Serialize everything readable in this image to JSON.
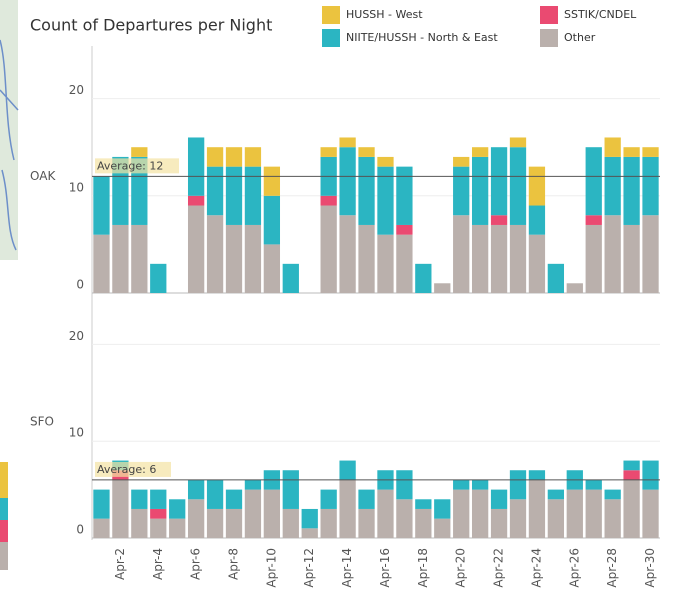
{
  "chart_data": {
    "type": "stacked_bar",
    "title": "Count of Departures per Night",
    "categories": [
      null,
      "Apr-2",
      null,
      "Apr-4",
      null,
      "Apr-6",
      null,
      "Apr-8",
      null,
      "Apr-10",
      null,
      "Apr-12",
      null,
      "Apr-14",
      null,
      "Apr-16",
      null,
      "Apr-18",
      null,
      "Apr-20",
      null,
      "Apr-22",
      null,
      "Apr-24",
      null,
      "Apr-26",
      null,
      "Apr-28",
      null,
      "Apr-30"
    ],
    "series": [
      {
        "name": "HUSSH - West",
        "color": "#ebc33f"
      },
      {
        "name": "NIITE/HUSSH - North & East",
        "color": "#2bb5c2"
      },
      {
        "name": "SSTIK/CNDEL",
        "color": "#ea4a71"
      },
      {
        "name": "Other",
        "color": "#bab0ac"
      }
    ],
    "grid": true,
    "panels": [
      {
        "label": "OAK",
        "ylim": [
          0,
          25
        ],
        "yticks": [
          0,
          10,
          20
        ],
        "average": 12,
        "average_label": "Average: 12",
        "values": [
          [
            0,
            0,
            1,
            0,
            0,
            0,
            2,
            2,
            2,
            3,
            0,
            0,
            1,
            1,
            1,
            1,
            0,
            0,
            0,
            1,
            1,
            0,
            1,
            4,
            0,
            0,
            0,
            2,
            1,
            1
          ],
          [
            6,
            7,
            7,
            3,
            0,
            6,
            5,
            6,
            6,
            5,
            3,
            0,
            4,
            7,
            7,
            7,
            6,
            3,
            0,
            5,
            7,
            7,
            8,
            3,
            3,
            0,
            7,
            6,
            7,
            6
          ],
          [
            0,
            0,
            0,
            0,
            0,
            1,
            0,
            0,
            0,
            0,
            0,
            0,
            1,
            0,
            0,
            0,
            1,
            0,
            0,
            0,
            0,
            1,
            0,
            0,
            0,
            0,
            1,
            0,
            0,
            0
          ],
          [
            6,
            7,
            7,
            0,
            0,
            9,
            8,
            7,
            7,
            5,
            0,
            0,
            9,
            8,
            7,
            6,
            6,
            0,
            1,
            8,
            7,
            7,
            7,
            6,
            0,
            1,
            7,
            8,
            7,
            8
          ]
        ]
      },
      {
        "label": "SFO",
        "ylim": [
          0,
          25
        ],
        "yticks": [
          0,
          10,
          20
        ],
        "average": 6,
        "average_label": "Average: 6",
        "values": [
          [
            0,
            0,
            0,
            0,
            0,
            0,
            0,
            0,
            0,
            0,
            0,
            0,
            0,
            0,
            0,
            0,
            0,
            0,
            0,
            0,
            0,
            0,
            0,
            0,
            0,
            0,
            0,
            0,
            0,
            0
          ],
          [
            3,
            1,
            2,
            2,
            2,
            2,
            3,
            2,
            1,
            2,
            4,
            2,
            2,
            2,
            2,
            2,
            3,
            1,
            2,
            1,
            1,
            2,
            3,
            1,
            1,
            2,
            1,
            1,
            1,
            3
          ],
          [
            0,
            1,
            0,
            1,
            0,
            0,
            0,
            0,
            0,
            0,
            0,
            0,
            0,
            0,
            0,
            0,
            0,
            0,
            0,
            0,
            0,
            0,
            0,
            0,
            0,
            0,
            0,
            0,
            1,
            0
          ],
          [
            2,
            6,
            3,
            2,
            2,
            4,
            3,
            3,
            5,
            5,
            3,
            1,
            3,
            6,
            3,
            5,
            4,
            3,
            2,
            5,
            5,
            3,
            4,
            6,
            4,
            5,
            5,
            4,
            6,
            5
          ]
        ]
      }
    ]
  }
}
